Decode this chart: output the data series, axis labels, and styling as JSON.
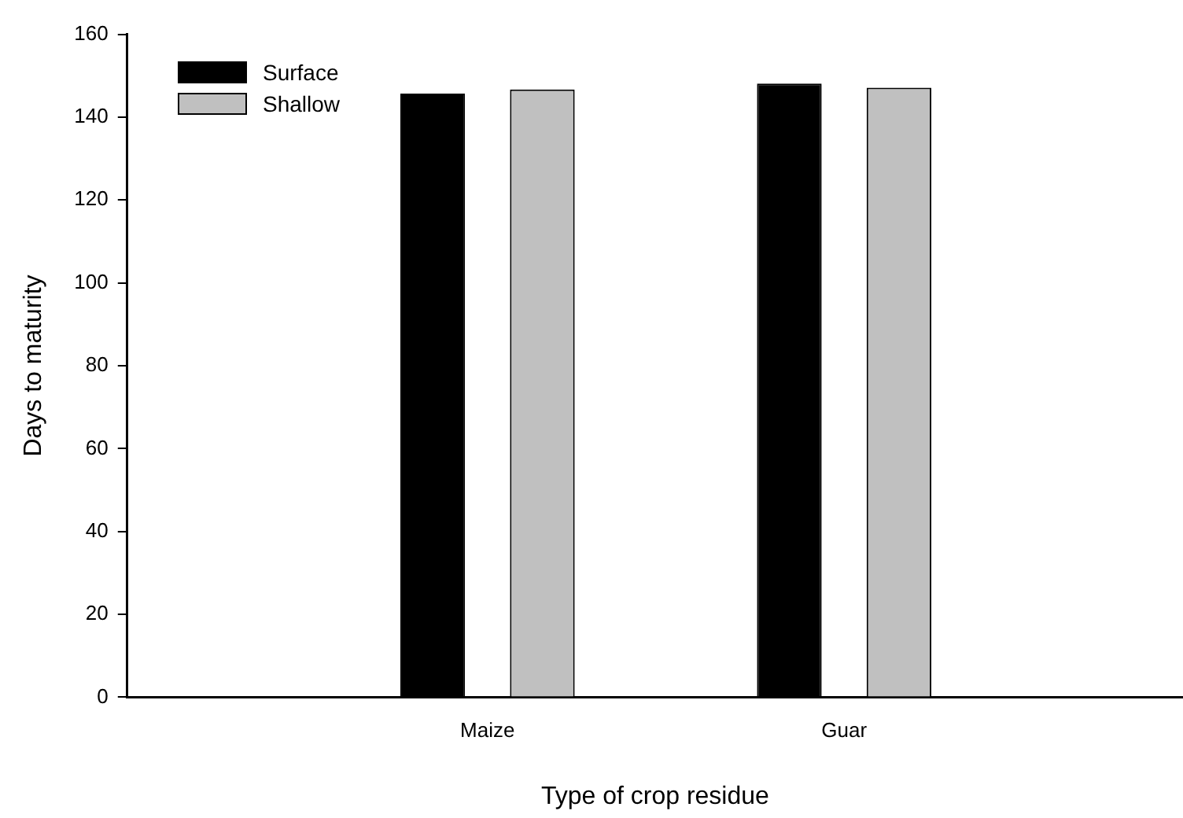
{
  "chart_data": {
    "type": "bar",
    "xlabel": "Type of crop residue",
    "ylabel": "Days to maturity",
    "categories": [
      "Maize",
      "Guar"
    ],
    "series": [
      {
        "name": "Surface",
        "color": "#000000",
        "values": [
          145.7,
          148.1
        ]
      },
      {
        "name": "Shallow",
        "color": "#c0c0c0",
        "values": [
          146.7,
          147.1
        ]
      }
    ],
    "ylim": [
      0,
      160
    ],
    "yticks": [
      0,
      20,
      40,
      60,
      80,
      100,
      120,
      140,
      160
    ],
    "grid": false,
    "legend": "top left"
  }
}
